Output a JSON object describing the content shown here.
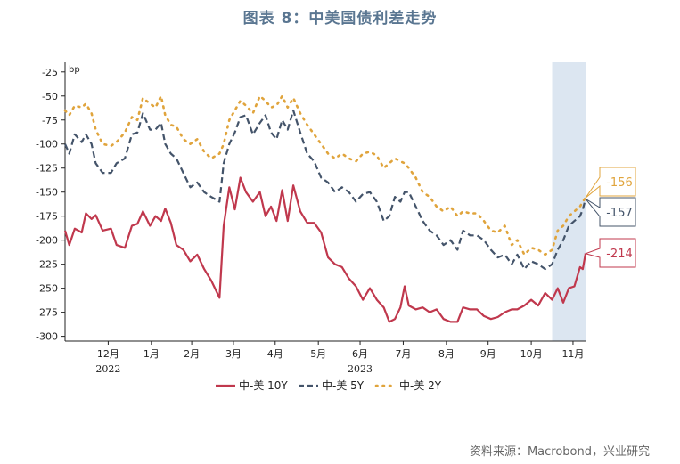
{
  "title": "图表 8：中美国债利差走势",
  "source": "资料来源：Macrobond，兴业研究",
  "chart_data": {
    "type": "line",
    "y_unit": "bp",
    "ylim": [
      -305,
      -15
    ],
    "y_ticks": [
      -25,
      -50,
      -75,
      -100,
      -125,
      -150,
      -175,
      -200,
      -225,
      -250,
      -275,
      -300
    ],
    "x_range": [
      "2022-11-15",
      "2023-11-24"
    ],
    "x_ticks": [
      {
        "label": "12月",
        "date": "2022-12-16"
      },
      {
        "label": "1月",
        "date": "2023-01-16"
      },
      {
        "label": "2月",
        "date": "2023-02-14"
      },
      {
        "label": "3月",
        "date": "2023-03-16"
      },
      {
        "label": "4月",
        "date": "2023-04-15"
      },
      {
        "label": "5月",
        "date": "2023-05-16"
      },
      {
        "label": "6月",
        "date": "2023-06-15"
      },
      {
        "label": "7月",
        "date": "2023-07-16"
      },
      {
        "label": "8月",
        "date": "2023-08-16"
      },
      {
        "label": "9月",
        "date": "2023-09-15"
      },
      {
        "label": "10月",
        "date": "2023-10-16"
      },
      {
        "label": "11月",
        "date": "2023-11-15"
      }
    ],
    "year_labels": [
      {
        "label": "2022",
        "date": "2022-12-16"
      },
      {
        "label": "2023",
        "date": "2023-06-15"
      }
    ],
    "shaded_period": {
      "start": "2023-10-31",
      "end": "2023-11-24",
      "color": "#dce6f1"
    },
    "series": [
      {
        "name": "中-美 10Y",
        "color": "#c0384d",
        "style": "solid",
        "end_label": "-214",
        "points": [
          [
            "2022-11-15",
            -190
          ],
          [
            "2022-11-18",
            -205
          ],
          [
            "2022-11-22",
            -188
          ],
          [
            "2022-11-27",
            -192
          ],
          [
            "2022-11-30",
            -172
          ],
          [
            "2022-12-04",
            -178
          ],
          [
            "2022-12-07",
            -174
          ],
          [
            "2022-12-12",
            -190
          ],
          [
            "2022-12-18",
            -188
          ],
          [
            "2022-12-22",
            -205
          ],
          [
            "2022-12-28",
            -208
          ],
          [
            "2023-01-02",
            -185
          ],
          [
            "2023-01-06",
            -183
          ],
          [
            "2023-01-10",
            -170
          ],
          [
            "2023-01-15",
            -185
          ],
          [
            "2023-01-19",
            -175
          ],
          [
            "2023-01-23",
            -180
          ],
          [
            "2023-01-26",
            -167
          ],
          [
            "2023-01-30",
            -182
          ],
          [
            "2023-02-03",
            -205
          ],
          [
            "2023-02-08",
            -210
          ],
          [
            "2023-02-13",
            -222
          ],
          [
            "2023-02-18",
            -215
          ],
          [
            "2023-02-23",
            -230
          ],
          [
            "2023-02-28",
            -242
          ],
          [
            "2023-03-06",
            -260
          ],
          [
            "2023-03-09",
            -185
          ],
          [
            "2023-03-13",
            -145
          ],
          [
            "2023-03-17",
            -168
          ],
          [
            "2023-03-21",
            -135
          ],
          [
            "2023-03-25",
            -150
          ],
          [
            "2023-03-30",
            -160
          ],
          [
            "2023-04-04",
            -150
          ],
          [
            "2023-04-08",
            -175
          ],
          [
            "2023-04-12",
            -165
          ],
          [
            "2023-04-16",
            -180
          ],
          [
            "2023-04-20",
            -148
          ],
          [
            "2023-04-24",
            -180
          ],
          [
            "2023-04-28",
            -143
          ],
          [
            "2023-05-03",
            -170
          ],
          [
            "2023-05-08",
            -182
          ],
          [
            "2023-05-13",
            -182
          ],
          [
            "2023-05-18",
            -192
          ],
          [
            "2023-05-23",
            -218
          ],
          [
            "2023-05-28",
            -225
          ],
          [
            "2023-06-02",
            -228
          ],
          [
            "2023-06-07",
            -240
          ],
          [
            "2023-06-12",
            -248
          ],
          [
            "2023-06-17",
            -262
          ],
          [
            "2023-06-22",
            -250
          ],
          [
            "2023-06-27",
            -262
          ],
          [
            "2023-07-02",
            -270
          ],
          [
            "2023-07-06",
            -285
          ],
          [
            "2023-07-10",
            -282
          ],
          [
            "2023-07-14",
            -270
          ],
          [
            "2023-07-17",
            -248
          ],
          [
            "2023-07-20",
            -268
          ],
          [
            "2023-07-25",
            -272
          ],
          [
            "2023-07-30",
            -270
          ],
          [
            "2023-08-04",
            -275
          ],
          [
            "2023-08-09",
            -272
          ],
          [
            "2023-08-14",
            -282
          ],
          [
            "2023-08-19",
            -285
          ],
          [
            "2023-08-24",
            -285
          ],
          [
            "2023-08-28",
            -270
          ],
          [
            "2023-09-02",
            -272
          ],
          [
            "2023-09-07",
            -272
          ],
          [
            "2023-09-12",
            -279
          ],
          [
            "2023-09-17",
            -282
          ],
          [
            "2023-09-22",
            -280
          ],
          [
            "2023-09-27",
            -275
          ],
          [
            "2023-10-02",
            -272
          ],
          [
            "2023-10-06",
            -272
          ],
          [
            "2023-10-11",
            -268
          ],
          [
            "2023-10-16",
            -262
          ],
          [
            "2023-10-21",
            -268
          ],
          [
            "2023-10-26",
            -255
          ],
          [
            "2023-10-31",
            -262
          ],
          [
            "2023-11-04",
            -250
          ],
          [
            "2023-11-08",
            -265
          ],
          [
            "2023-11-12",
            -250
          ],
          [
            "2023-11-16",
            -248
          ],
          [
            "2023-11-20",
            -228
          ],
          [
            "2023-11-22",
            -230
          ],
          [
            "2023-11-24",
            -214
          ]
        ]
      },
      {
        "name": "中-美 5Y",
        "color": "#44546a",
        "style": "dashed",
        "end_label": "-157",
        "points": [
          [
            "2022-11-15",
            -100
          ],
          [
            "2022-11-18",
            -110
          ],
          [
            "2022-11-22",
            -90
          ],
          [
            "2022-11-27",
            -98
          ],
          [
            "2022-11-30",
            -90
          ],
          [
            "2022-12-04",
            -100
          ],
          [
            "2022-12-07",
            -120
          ],
          [
            "2022-12-12",
            -130
          ],
          [
            "2022-12-18",
            -130
          ],
          [
            "2022-12-22",
            -120
          ],
          [
            "2022-12-28",
            -115
          ],
          [
            "2023-01-02",
            -90
          ],
          [
            "2023-01-06",
            -88
          ],
          [
            "2023-01-10",
            -68
          ],
          [
            "2023-01-15",
            -85
          ],
          [
            "2023-01-19",
            -85
          ],
          [
            "2023-01-23",
            -78
          ],
          [
            "2023-01-26",
            -100
          ],
          [
            "2023-01-30",
            -110
          ],
          [
            "2023-02-03",
            -115
          ],
          [
            "2023-02-08",
            -130
          ],
          [
            "2023-02-13",
            -145
          ],
          [
            "2023-02-18",
            -140
          ],
          [
            "2023-02-23",
            -150
          ],
          [
            "2023-02-28",
            -155
          ],
          [
            "2023-03-06",
            -160
          ],
          [
            "2023-03-09",
            -120
          ],
          [
            "2023-03-13",
            -100
          ],
          [
            "2023-03-17",
            -88
          ],
          [
            "2023-03-21",
            -72
          ],
          [
            "2023-03-25",
            -70
          ],
          [
            "2023-03-30",
            -90
          ],
          [
            "2023-04-04",
            -78
          ],
          [
            "2023-04-08",
            -70
          ],
          [
            "2023-04-12",
            -88
          ],
          [
            "2023-04-16",
            -95
          ],
          [
            "2023-04-20",
            -75
          ],
          [
            "2023-04-24",
            -85
          ],
          [
            "2023-04-28",
            -65
          ],
          [
            "2023-05-03",
            -88
          ],
          [
            "2023-05-08",
            -110
          ],
          [
            "2023-05-13",
            -118
          ],
          [
            "2023-05-18",
            -135
          ],
          [
            "2023-05-23",
            -140
          ],
          [
            "2023-05-28",
            -150
          ],
          [
            "2023-06-02",
            -145
          ],
          [
            "2023-06-07",
            -150
          ],
          [
            "2023-06-12",
            -160
          ],
          [
            "2023-06-17",
            -152
          ],
          [
            "2023-06-22",
            -150
          ],
          [
            "2023-06-27",
            -160
          ],
          [
            "2023-07-02",
            -180
          ],
          [
            "2023-07-06",
            -175
          ],
          [
            "2023-07-10",
            -155
          ],
          [
            "2023-07-14",
            -160
          ],
          [
            "2023-07-17",
            -150
          ],
          [
            "2023-07-20",
            -150
          ],
          [
            "2023-07-25",
            -165
          ],
          [
            "2023-07-30",
            -180
          ],
          [
            "2023-08-04",
            -190
          ],
          [
            "2023-08-09",
            -195
          ],
          [
            "2023-08-14",
            -205
          ],
          [
            "2023-08-19",
            -200
          ],
          [
            "2023-08-24",
            -210
          ],
          [
            "2023-08-28",
            -190
          ],
          [
            "2023-09-02",
            -195
          ],
          [
            "2023-09-07",
            -195
          ],
          [
            "2023-09-12",
            -200
          ],
          [
            "2023-09-17",
            -210
          ],
          [
            "2023-09-22",
            -218
          ],
          [
            "2023-09-27",
            -215
          ],
          [
            "2023-10-02",
            -225
          ],
          [
            "2023-10-06",
            -215
          ],
          [
            "2023-10-11",
            -230
          ],
          [
            "2023-10-16",
            -222
          ],
          [
            "2023-10-21",
            -225
          ],
          [
            "2023-10-26",
            -230
          ],
          [
            "2023-10-31",
            -225
          ],
          [
            "2023-11-04",
            -210
          ],
          [
            "2023-11-08",
            -200
          ],
          [
            "2023-11-12",
            -185
          ],
          [
            "2023-11-16",
            -180
          ],
          [
            "2023-11-20",
            -175
          ],
          [
            "2023-11-22",
            -168
          ],
          [
            "2023-11-24",
            -157
          ]
        ]
      },
      {
        "name": "中-美 2Y",
        "color": "#e0a43c",
        "style": "dotted",
        "end_label": "-156",
        "points": [
          [
            "2022-11-15",
            -65
          ],
          [
            "2022-11-18",
            -70
          ],
          [
            "2022-11-22",
            -60
          ],
          [
            "2022-11-27",
            -62
          ],
          [
            "2022-11-30",
            -58
          ],
          [
            "2022-12-04",
            -68
          ],
          [
            "2022-12-07",
            -85
          ],
          [
            "2022-12-12",
            -100
          ],
          [
            "2022-12-18",
            -102
          ],
          [
            "2022-12-22",
            -98
          ],
          [
            "2022-12-28",
            -88
          ],
          [
            "2023-01-02",
            -72
          ],
          [
            "2023-01-06",
            -75
          ],
          [
            "2023-01-10",
            -52
          ],
          [
            "2023-01-15",
            -58
          ],
          [
            "2023-01-19",
            -62
          ],
          [
            "2023-01-23",
            -50
          ],
          [
            "2023-01-26",
            -70
          ],
          [
            "2023-01-30",
            -80
          ],
          [
            "2023-02-03",
            -82
          ],
          [
            "2023-02-08",
            -95
          ],
          [
            "2023-02-13",
            -100
          ],
          [
            "2023-02-18",
            -95
          ],
          [
            "2023-02-23",
            -108
          ],
          [
            "2023-02-28",
            -115
          ],
          [
            "2023-03-06",
            -110
          ],
          [
            "2023-03-09",
            -100
          ],
          [
            "2023-03-13",
            -75
          ],
          [
            "2023-03-17",
            -65
          ],
          [
            "2023-03-21",
            -55
          ],
          [
            "2023-03-25",
            -60
          ],
          [
            "2023-03-30",
            -68
          ],
          [
            "2023-04-04",
            -50
          ],
          [
            "2023-04-08",
            -55
          ],
          [
            "2023-04-12",
            -62
          ],
          [
            "2023-04-16",
            -60
          ],
          [
            "2023-04-20",
            -50
          ],
          [
            "2023-04-24",
            -62
          ],
          [
            "2023-04-28",
            -52
          ],
          [
            "2023-05-03",
            -68
          ],
          [
            "2023-05-08",
            -80
          ],
          [
            "2023-05-13",
            -90
          ],
          [
            "2023-05-18",
            -100
          ],
          [
            "2023-05-23",
            -110
          ],
          [
            "2023-05-28",
            -115
          ],
          [
            "2023-06-02",
            -110
          ],
          [
            "2023-06-07",
            -115
          ],
          [
            "2023-06-12",
            -118
          ],
          [
            "2023-06-17",
            -110
          ],
          [
            "2023-06-22",
            -108
          ],
          [
            "2023-06-27",
            -112
          ],
          [
            "2023-07-02",
            -125
          ],
          [
            "2023-07-06",
            -120
          ],
          [
            "2023-07-10",
            -115
          ],
          [
            "2023-07-14",
            -118
          ],
          [
            "2023-07-17",
            -120
          ],
          [
            "2023-07-20",
            -125
          ],
          [
            "2023-07-25",
            -135
          ],
          [
            "2023-07-30",
            -150
          ],
          [
            "2023-08-04",
            -155
          ],
          [
            "2023-08-09",
            -165
          ],
          [
            "2023-08-14",
            -170
          ],
          [
            "2023-08-19",
            -165
          ],
          [
            "2023-08-24",
            -175
          ],
          [
            "2023-08-28",
            -170
          ],
          [
            "2023-09-02",
            -172
          ],
          [
            "2023-09-07",
            -172
          ],
          [
            "2023-09-12",
            -180
          ],
          [
            "2023-09-17",
            -190
          ],
          [
            "2023-09-22",
            -192
          ],
          [
            "2023-09-27",
            -185
          ],
          [
            "2023-10-02",
            -205
          ],
          [
            "2023-10-06",
            -200
          ],
          [
            "2023-10-11",
            -215
          ],
          [
            "2023-10-16",
            -208
          ],
          [
            "2023-10-21",
            -210
          ],
          [
            "2023-10-26",
            -215
          ],
          [
            "2023-10-31",
            -210
          ],
          [
            "2023-11-04",
            -190
          ],
          [
            "2023-11-08",
            -185
          ],
          [
            "2023-11-12",
            -175
          ],
          [
            "2023-11-16",
            -170
          ],
          [
            "2023-11-20",
            -165
          ],
          [
            "2023-11-22",
            -160
          ],
          [
            "2023-11-24",
            -156
          ]
        ]
      }
    ]
  }
}
